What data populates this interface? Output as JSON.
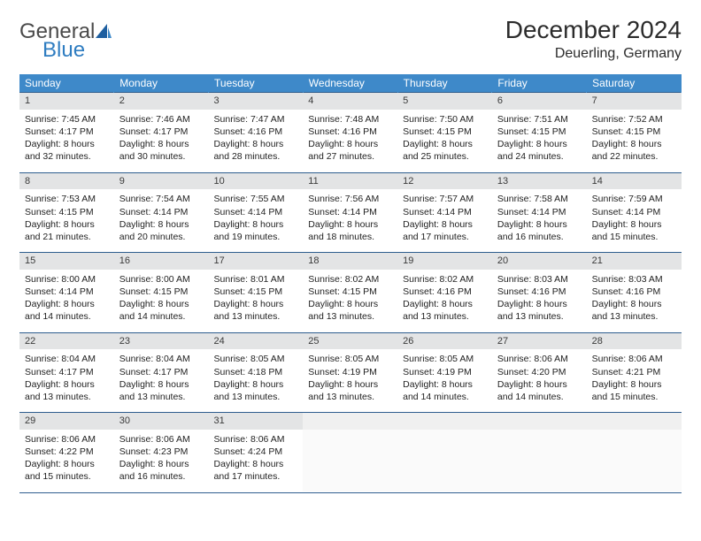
{
  "logo": {
    "text1": "General",
    "text2": "Blue"
  },
  "title": "December 2024",
  "location": "Deuerling, Germany",
  "colors": {
    "header_bg": "#3e89c9",
    "header_text": "#ffffff",
    "daynum_bg": "#e3e4e5",
    "row_border": "#2f5e8f",
    "logo_gray": "#4a4a4a",
    "logo_blue": "#2f7dc1"
  },
  "daysOfWeek": [
    "Sunday",
    "Monday",
    "Tuesday",
    "Wednesday",
    "Thursday",
    "Friday",
    "Saturday"
  ],
  "weeks": [
    [
      {
        "n": "1",
        "sunrise": "Sunrise: 7:45 AM",
        "sunset": "Sunset: 4:17 PM",
        "day1": "Daylight: 8 hours",
        "day2": "and 32 minutes."
      },
      {
        "n": "2",
        "sunrise": "Sunrise: 7:46 AM",
        "sunset": "Sunset: 4:17 PM",
        "day1": "Daylight: 8 hours",
        "day2": "and 30 minutes."
      },
      {
        "n": "3",
        "sunrise": "Sunrise: 7:47 AM",
        "sunset": "Sunset: 4:16 PM",
        "day1": "Daylight: 8 hours",
        "day2": "and 28 minutes."
      },
      {
        "n": "4",
        "sunrise": "Sunrise: 7:48 AM",
        "sunset": "Sunset: 4:16 PM",
        "day1": "Daylight: 8 hours",
        "day2": "and 27 minutes."
      },
      {
        "n": "5",
        "sunrise": "Sunrise: 7:50 AM",
        "sunset": "Sunset: 4:15 PM",
        "day1": "Daylight: 8 hours",
        "day2": "and 25 minutes."
      },
      {
        "n": "6",
        "sunrise": "Sunrise: 7:51 AM",
        "sunset": "Sunset: 4:15 PM",
        "day1": "Daylight: 8 hours",
        "day2": "and 24 minutes."
      },
      {
        "n": "7",
        "sunrise": "Sunrise: 7:52 AM",
        "sunset": "Sunset: 4:15 PM",
        "day1": "Daylight: 8 hours",
        "day2": "and 22 minutes."
      }
    ],
    [
      {
        "n": "8",
        "sunrise": "Sunrise: 7:53 AM",
        "sunset": "Sunset: 4:15 PM",
        "day1": "Daylight: 8 hours",
        "day2": "and 21 minutes."
      },
      {
        "n": "9",
        "sunrise": "Sunrise: 7:54 AM",
        "sunset": "Sunset: 4:14 PM",
        "day1": "Daylight: 8 hours",
        "day2": "and 20 minutes."
      },
      {
        "n": "10",
        "sunrise": "Sunrise: 7:55 AM",
        "sunset": "Sunset: 4:14 PM",
        "day1": "Daylight: 8 hours",
        "day2": "and 19 minutes."
      },
      {
        "n": "11",
        "sunrise": "Sunrise: 7:56 AM",
        "sunset": "Sunset: 4:14 PM",
        "day1": "Daylight: 8 hours",
        "day2": "and 18 minutes."
      },
      {
        "n": "12",
        "sunrise": "Sunrise: 7:57 AM",
        "sunset": "Sunset: 4:14 PM",
        "day1": "Daylight: 8 hours",
        "day2": "and 17 minutes."
      },
      {
        "n": "13",
        "sunrise": "Sunrise: 7:58 AM",
        "sunset": "Sunset: 4:14 PM",
        "day1": "Daylight: 8 hours",
        "day2": "and 16 minutes."
      },
      {
        "n": "14",
        "sunrise": "Sunrise: 7:59 AM",
        "sunset": "Sunset: 4:14 PM",
        "day1": "Daylight: 8 hours",
        "day2": "and 15 minutes."
      }
    ],
    [
      {
        "n": "15",
        "sunrise": "Sunrise: 8:00 AM",
        "sunset": "Sunset: 4:14 PM",
        "day1": "Daylight: 8 hours",
        "day2": "and 14 minutes."
      },
      {
        "n": "16",
        "sunrise": "Sunrise: 8:00 AM",
        "sunset": "Sunset: 4:15 PM",
        "day1": "Daylight: 8 hours",
        "day2": "and 14 minutes."
      },
      {
        "n": "17",
        "sunrise": "Sunrise: 8:01 AM",
        "sunset": "Sunset: 4:15 PM",
        "day1": "Daylight: 8 hours",
        "day2": "and 13 minutes."
      },
      {
        "n": "18",
        "sunrise": "Sunrise: 8:02 AM",
        "sunset": "Sunset: 4:15 PM",
        "day1": "Daylight: 8 hours",
        "day2": "and 13 minutes."
      },
      {
        "n": "19",
        "sunrise": "Sunrise: 8:02 AM",
        "sunset": "Sunset: 4:16 PM",
        "day1": "Daylight: 8 hours",
        "day2": "and 13 minutes."
      },
      {
        "n": "20",
        "sunrise": "Sunrise: 8:03 AM",
        "sunset": "Sunset: 4:16 PM",
        "day1": "Daylight: 8 hours",
        "day2": "and 13 minutes."
      },
      {
        "n": "21",
        "sunrise": "Sunrise: 8:03 AM",
        "sunset": "Sunset: 4:16 PM",
        "day1": "Daylight: 8 hours",
        "day2": "and 13 minutes."
      }
    ],
    [
      {
        "n": "22",
        "sunrise": "Sunrise: 8:04 AM",
        "sunset": "Sunset: 4:17 PM",
        "day1": "Daylight: 8 hours",
        "day2": "and 13 minutes."
      },
      {
        "n": "23",
        "sunrise": "Sunrise: 8:04 AM",
        "sunset": "Sunset: 4:17 PM",
        "day1": "Daylight: 8 hours",
        "day2": "and 13 minutes."
      },
      {
        "n": "24",
        "sunrise": "Sunrise: 8:05 AM",
        "sunset": "Sunset: 4:18 PM",
        "day1": "Daylight: 8 hours",
        "day2": "and 13 minutes."
      },
      {
        "n": "25",
        "sunrise": "Sunrise: 8:05 AM",
        "sunset": "Sunset: 4:19 PM",
        "day1": "Daylight: 8 hours",
        "day2": "and 13 minutes."
      },
      {
        "n": "26",
        "sunrise": "Sunrise: 8:05 AM",
        "sunset": "Sunset: 4:19 PM",
        "day1": "Daylight: 8 hours",
        "day2": "and 14 minutes."
      },
      {
        "n": "27",
        "sunrise": "Sunrise: 8:06 AM",
        "sunset": "Sunset: 4:20 PM",
        "day1": "Daylight: 8 hours",
        "day2": "and 14 minutes."
      },
      {
        "n": "28",
        "sunrise": "Sunrise: 8:06 AM",
        "sunset": "Sunset: 4:21 PM",
        "day1": "Daylight: 8 hours",
        "day2": "and 15 minutes."
      }
    ],
    [
      {
        "n": "29",
        "sunrise": "Sunrise: 8:06 AM",
        "sunset": "Sunset: 4:22 PM",
        "day1": "Daylight: 8 hours",
        "day2": "and 15 minutes."
      },
      {
        "n": "30",
        "sunrise": "Sunrise: 8:06 AM",
        "sunset": "Sunset: 4:23 PM",
        "day1": "Daylight: 8 hours",
        "day2": "and 16 minutes."
      },
      {
        "n": "31",
        "sunrise": "Sunrise: 8:06 AM",
        "sunset": "Sunset: 4:24 PM",
        "day1": "Daylight: 8 hours",
        "day2": "and 17 minutes."
      },
      {
        "empty": true
      },
      {
        "empty": true
      },
      {
        "empty": true
      },
      {
        "empty": true
      }
    ]
  ]
}
